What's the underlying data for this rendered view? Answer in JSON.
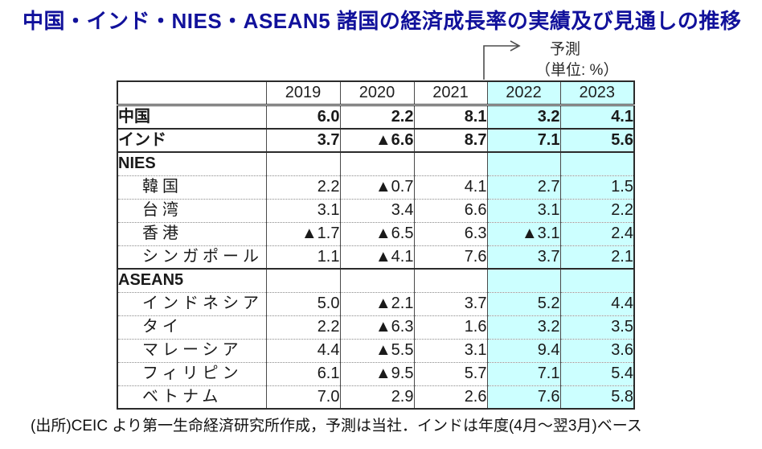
{
  "title": "中国・インド・NIES・ASEAN5 諸国の経済成長率の実績及び見通しの推移",
  "annotation": {
    "forecast_label": "予測",
    "unit_label": "（単位: %）"
  },
  "table": {
    "columns": [
      "2019",
      "2020",
      "2021",
      "2022",
      "2023"
    ],
    "forecast_column_indexes": [
      3,
      4
    ],
    "rows": [
      {
        "label": "中国",
        "type": "bold",
        "values": [
          "6.0",
          "2.2",
          "8.1",
          "3.2",
          "4.1"
        ]
      },
      {
        "label": "インド",
        "type": "bold",
        "values": [
          "3.7",
          "▲6.6",
          "8.7",
          "7.1",
          "5.6"
        ]
      },
      {
        "label": "NIES",
        "type": "section",
        "values": [
          "",
          "",
          "",
          "",
          ""
        ]
      },
      {
        "label": "韓国",
        "type": "item",
        "values": [
          "2.2",
          "▲0.7",
          "4.1",
          "2.7",
          "1.5"
        ]
      },
      {
        "label": "台湾",
        "type": "item",
        "values": [
          "3.1",
          "3.4",
          "6.6",
          "3.1",
          "2.2"
        ]
      },
      {
        "label": "香港",
        "type": "item",
        "values": [
          "▲1.7",
          "▲6.5",
          "6.3",
          "▲3.1",
          "2.4"
        ]
      },
      {
        "label": "シンガポール",
        "type": "item",
        "values": [
          "1.1",
          "▲4.1",
          "7.6",
          "3.7",
          "2.1"
        ]
      },
      {
        "label": "ASEAN5",
        "type": "section",
        "values": [
          "",
          "",
          "",
          "",
          ""
        ]
      },
      {
        "label": "インドネシア",
        "type": "item",
        "values": [
          "5.0",
          "▲2.1",
          "3.7",
          "5.2",
          "4.4"
        ]
      },
      {
        "label": "タイ",
        "type": "item",
        "values": [
          "2.2",
          "▲6.3",
          "1.6",
          "3.2",
          "3.5"
        ]
      },
      {
        "label": "マレーシア",
        "type": "item",
        "values": [
          "4.4",
          "▲5.5",
          "3.1",
          "9.4",
          "3.6"
        ]
      },
      {
        "label": "フィリピン",
        "type": "item",
        "values": [
          "6.1",
          "▲9.5",
          "5.7",
          "7.1",
          "5.4"
        ]
      },
      {
        "label": "ベトナム",
        "type": "item",
        "values": [
          "7.0",
          "2.9",
          "2.6",
          "7.6",
          "5.8"
        ]
      }
    ]
  },
  "footer": "(出所)CEIC より第一生命経済研究所作成，予測は当社．インドは年度(4月～翌3月)ベース",
  "colors": {
    "title_navy": "#11119b",
    "forecast_bg": "#ccffff",
    "border_dark": "#2b2b2b"
  },
  "chart_data": {
    "type": "table",
    "title": "中国・インド・NIES・ASEAN5 諸国の経済成長率の実績及び見通しの推移",
    "unit": "%",
    "negative_marker": "▲",
    "columns": [
      "2019",
      "2020",
      "2021",
      "2022",
      "2023"
    ],
    "forecast_years": [
      "2022",
      "2023"
    ],
    "groups": [
      "NIES",
      "ASEAN5"
    ],
    "series": [
      {
        "name": "中国",
        "group": null,
        "values": [
          6.0,
          2.2,
          8.1,
          3.2,
          4.1
        ]
      },
      {
        "name": "インド",
        "group": null,
        "values": [
          3.7,
          -6.6,
          8.7,
          7.1,
          5.6
        ]
      },
      {
        "name": "韓国",
        "group": "NIES",
        "values": [
          2.2,
          -0.7,
          4.1,
          2.7,
          1.5
        ]
      },
      {
        "name": "台湾",
        "group": "NIES",
        "values": [
          3.1,
          3.4,
          6.6,
          3.1,
          2.2
        ]
      },
      {
        "name": "香港",
        "group": "NIES",
        "values": [
          -1.7,
          -6.5,
          6.3,
          -3.1,
          2.4
        ]
      },
      {
        "name": "シンガポール",
        "group": "NIES",
        "values": [
          1.1,
          -4.1,
          7.6,
          3.7,
          2.1
        ]
      },
      {
        "name": "インドネシア",
        "group": "ASEAN5",
        "values": [
          5.0,
          -2.1,
          3.7,
          5.2,
          4.4
        ]
      },
      {
        "name": "タイ",
        "group": "ASEAN5",
        "values": [
          2.2,
          -6.3,
          1.6,
          3.2,
          3.5
        ]
      },
      {
        "name": "マレーシア",
        "group": "ASEAN5",
        "values": [
          4.4,
          -5.5,
          3.1,
          9.4,
          3.6
        ]
      },
      {
        "name": "フィリピン",
        "group": "ASEAN5",
        "values": [
          6.1,
          -9.5,
          5.7,
          7.1,
          5.4
        ]
      },
      {
        "name": "ベトナム",
        "group": "ASEAN5",
        "values": [
          7.0,
          2.9,
          2.6,
          7.6,
          5.8
        ]
      }
    ],
    "source": "(出所)CEIC より第一生命経済研究所作成，予測は当社．インドは年度(4月～翌3月)ベース"
  }
}
